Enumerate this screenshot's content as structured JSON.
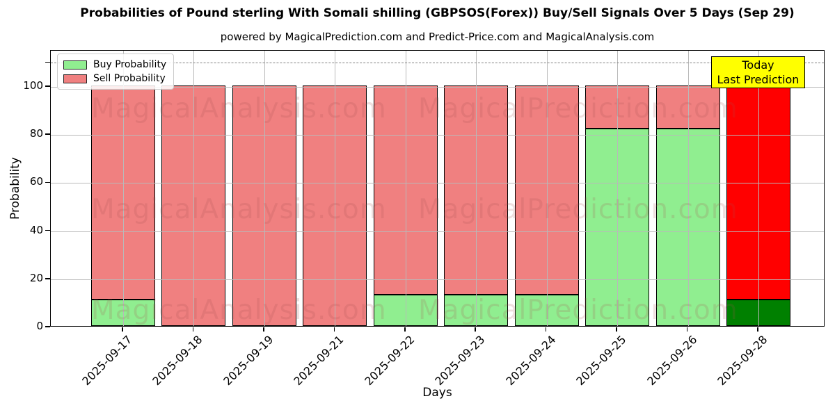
{
  "chart_data": {
    "type": "bar",
    "stacked": true,
    "title": "Probabilities of Pound sterling With Somali shilling (GBPSOS(Forex)) Buy/Sell Signals Over 5 Days (Sep 29)",
    "subtitle": "powered by MagicalPrediction.com and Predict-Price.com and MagicalAnalysis.com",
    "xlabel": "Days",
    "ylabel": "Probability",
    "ylim": [
      0,
      115
    ],
    "yticks": [
      0,
      20,
      40,
      60,
      80,
      100
    ],
    "dashed_guideline_y": 110,
    "grid": true,
    "legend_position": "top-left",
    "categories": [
      "2025-09-17",
      "2025-09-18",
      "2025-09-19",
      "2025-09-21",
      "2025-09-22",
      "2025-09-23",
      "2025-09-24",
      "2025-09-25",
      "2025-09-26",
      "2025-09-28"
    ],
    "series": [
      {
        "name": "Buy Probability",
        "values": [
          11,
          0,
          0,
          0,
          13,
          13,
          13,
          82,
          82,
          11
        ]
      },
      {
        "name": "Sell Probability",
        "values": [
          89,
          100,
          100,
          100,
          87,
          87,
          87,
          18,
          18,
          89
        ]
      }
    ],
    "today_index": 9,
    "colors": {
      "buy": "#90ee90",
      "sell": "#f08080",
      "buy_today": "#008000",
      "sell_today": "#ff0000",
      "edge": "#000000",
      "grid": "#b9b9b9"
    }
  },
  "legend": {
    "items": [
      {
        "label": "Buy Probability",
        "color": "#90ee90"
      },
      {
        "label": "Sell Probability",
        "color": "#f08080"
      }
    ]
  },
  "annotation": {
    "lines": [
      "Today",
      "Last Prediction"
    ],
    "bg_color": "#ffff00"
  },
  "watermarks": {
    "left_text": "MagicalAnalysis.com",
    "right_text": "MagicalPrediction.com"
  }
}
